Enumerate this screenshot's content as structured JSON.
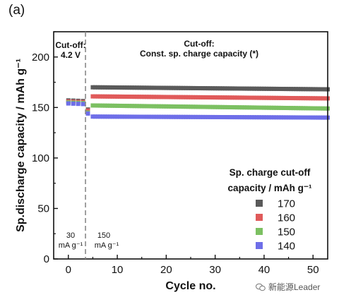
{
  "panel_label": "(a)",
  "watermark": "新能源Leader",
  "chart_data": {
    "type": "scatter",
    "xlabel": "Cycle no.",
    "ylabel": "Sp.discharge capacity / mAh g⁻¹",
    "xlim": [
      -3,
      53
    ],
    "ylim": [
      0,
      225
    ],
    "x_ticks": [
      "0",
      "10",
      "20",
      "30",
      "40",
      "50"
    ],
    "y_ticks": [
      "0",
      "50",
      "100",
      "150",
      "200"
    ],
    "annotations": {
      "cutoff_left": "Cut-off:",
      "cutoff_left_value": "4.2 V",
      "cutoff_right": "Cut-off:",
      "cutoff_right_value": "Const. sp. charge capacity (*)",
      "rate_left": "30",
      "rate_left_unit": "mA g⁻¹",
      "rate_right": "150",
      "rate_right_unit": "mA g⁻¹"
    },
    "divider_x": 3.5,
    "legend_title_line1": "Sp. charge cut-off",
    "legend_title_line2": "capacity / mAh g⁻¹",
    "legend_position": "lower-right",
    "series": [
      {
        "name": "170",
        "color": "#5a5a5a",
        "x_start": 0,
        "x_end": 53,
        "y_initial": 157,
        "y_step": 148,
        "y_start": 170,
        "y_end": 168
      },
      {
        "name": "160",
        "color": "#e05a5a",
        "x_start": 0,
        "x_end": 53,
        "y_initial": 156,
        "y_step": 147,
        "y_start": 161,
        "y_end": 159
      },
      {
        "name": "150",
        "color": "#7cc062",
        "x_start": 0,
        "x_end": 53,
        "y_initial": 155,
        "y_step": 145,
        "y_start": 152,
        "y_end": 149
      },
      {
        "name": "140",
        "color": "#6e6ee8",
        "x_start": 0,
        "x_end": 53,
        "y_initial": 154,
        "y_step": 144,
        "y_start": 141,
        "y_end": 140
      }
    ]
  }
}
